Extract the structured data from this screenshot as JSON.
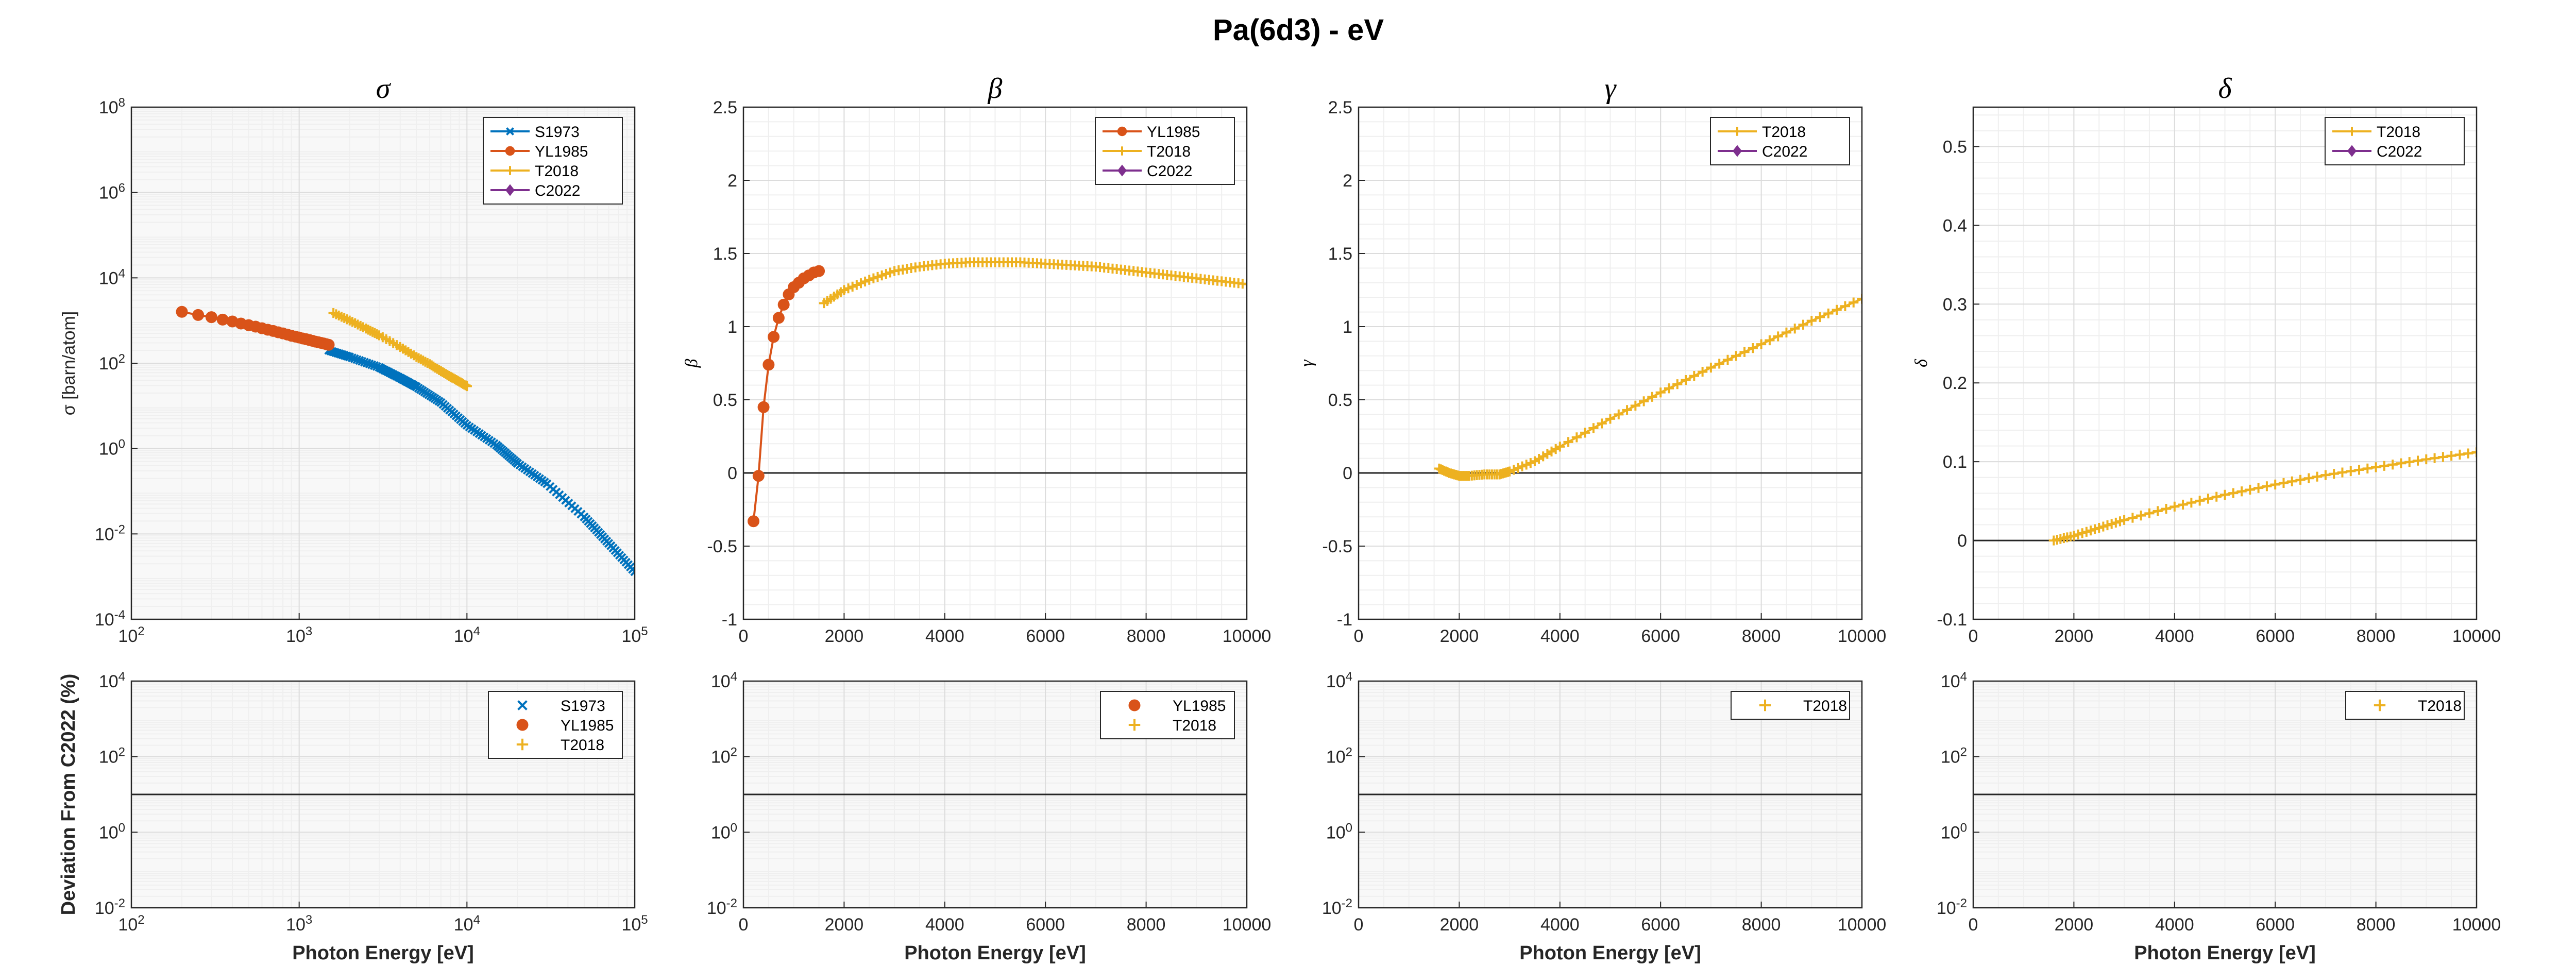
{
  "figure": {
    "title": "Pa(6d3) -  eV"
  },
  "colors": {
    "S1973": "#0072BD",
    "YL1985": "#D95319",
    "T2018": "#EDB120",
    "C2022": "#7E2F8E",
    "zero_line": "#262626",
    "axis": "#262626",
    "grid_major": "#dcdcdc",
    "grid_minor": "#efefef",
    "band": "#f2f2f2"
  },
  "chart_data": [
    {
      "id": "sigma",
      "type": "line",
      "title": "σ",
      "xlabel": "",
      "ylabel": "σ [barn/atom]",
      "xscale": "log",
      "yscale": "log",
      "xlim": [
        100,
        100000
      ],
      "ylim": [
        0.0001,
        100000000
      ],
      "xticks": [
        100,
        1000,
        10000,
        100000
      ],
      "xtick_labels": [
        {
          "b": "10",
          "e": "2"
        },
        {
          "b": "10",
          "e": "3"
        },
        {
          "b": "10",
          "e": "4"
        },
        {
          "b": "10",
          "e": "5"
        }
      ],
      "yticks": [
        0.0001,
        0.01,
        1,
        100,
        10000,
        1000000,
        100000000
      ],
      "ytick_labels": [
        {
          "b": "10",
          "e": "-4"
        },
        {
          "b": "10",
          "e": "-2"
        },
        {
          "b": "10",
          "e": "0"
        },
        {
          "b": "10",
          "e": "2"
        },
        {
          "b": "10",
          "e": "4"
        },
        {
          "b": "10",
          "e": "6"
        },
        {
          "b": "10",
          "e": "8"
        }
      ],
      "grid": "major+minor",
      "legend": "top-right",
      "legend_entries": [
        "S1973",
        "YL1985",
        "T2018",
        "C2022"
      ],
      "series": [
        {
          "name": "S1973",
          "marker": "x",
          "x": [
            1500,
            2000,
            3000,
            4000,
            5000,
            7000,
            10000,
            15000,
            20000,
            30000,
            50000,
            70000,
            100000
          ],
          "y": [
            200,
            140,
            80,
            45,
            28,
            12,
            3.5,
            1.2,
            0.45,
            0.15,
            0.025,
            0.006,
            0.0013
          ]
        },
        {
          "name": "YL1985",
          "marker": "o",
          "x": [
            200,
            250,
            300,
            350,
            400,
            450,
            500,
            550,
            600,
            650,
            700,
            750,
            800,
            850,
            900,
            950,
            1000,
            1050,
            1100,
            1150,
            1200,
            1250,
            1300,
            1350,
            1400,
            1450,
            1500
          ],
          "y": [
            1600,
            1350,
            1200,
            1050,
            950,
            850,
            780,
            720,
            660,
            610,
            570,
            530,
            500,
            470,
            440,
            420,
            400,
            380,
            365,
            350,
            335,
            320,
            310,
            300,
            290,
            280,
            270
          ]
        },
        {
          "name": "T2018",
          "marker": "+",
          "x": [
            1600,
            2000,
            2500,
            3000,
            4000,
            5000,
            6000,
            7000,
            8000,
            9000,
            10000
          ],
          "y": [
            1500,
            1000,
            650,
            450,
            240,
            140,
            95,
            65,
            48,
            37,
            29
          ]
        },
        {
          "name": "C2022",
          "marker": "d",
          "x": [],
          "y": []
        }
      ]
    },
    {
      "id": "beta",
      "type": "line",
      "title": "β",
      "xlabel": "",
      "ylabel": "β",
      "xscale": "linear",
      "yscale": "linear",
      "xlim": [
        0,
        10000
      ],
      "ylim": [
        -1,
        2.5
      ],
      "xticks": [
        0,
        2000,
        4000,
        6000,
        8000,
        10000
      ],
      "xtick_labels": [
        "0",
        "2000",
        "4000",
        "6000",
        "8000",
        "10000"
      ],
      "yticks": [
        -1,
        -0.5,
        0,
        0.5,
        1,
        1.5,
        2,
        2.5
      ],
      "ytick_labels": [
        "-1",
        "-0.5",
        "0",
        "0.5",
        "1",
        "1.5",
        "2",
        "2.5"
      ],
      "grid": "major+minor",
      "zero_line": true,
      "legend": "top-right",
      "legend_entries": [
        "YL1985",
        "T2018",
        "C2022"
      ],
      "series": [
        {
          "name": "YL1985",
          "marker": "o",
          "x": [
            200,
            300,
            400,
            500,
            600,
            700,
            800,
            900,
            1000,
            1100,
            1200,
            1300,
            1400,
            1500
          ],
          "y": [
            -0.33,
            -0.02,
            0.45,
            0.74,
            0.93,
            1.06,
            1.15,
            1.22,
            1.27,
            1.3,
            1.33,
            1.35,
            1.37,
            1.38
          ]
        },
        {
          "name": "T2018",
          "marker": "+",
          "x": [
            1600,
            2000,
            2500,
            3000,
            3500,
            4000,
            4500,
            5000,
            5500,
            6000,
            6500,
            7000,
            7500,
            8000,
            8500,
            9000,
            9500,
            10000
          ],
          "y": [
            1.16,
            1.25,
            1.32,
            1.38,
            1.41,
            1.43,
            1.44,
            1.44,
            1.44,
            1.43,
            1.42,
            1.41,
            1.39,
            1.37,
            1.35,
            1.33,
            1.31,
            1.29
          ]
        },
        {
          "name": "C2022",
          "marker": "d",
          "x": [],
          "y": []
        }
      ]
    },
    {
      "id": "gamma",
      "type": "line",
      "title": "γ",
      "xlabel": "",
      "ylabel": "γ",
      "xscale": "linear",
      "yscale": "linear",
      "xlim": [
        0,
        10000
      ],
      "ylim": [
        -1,
        2.5
      ],
      "xticks": [
        0,
        2000,
        4000,
        6000,
        8000,
        10000
      ],
      "xtick_labels": [
        "0",
        "2000",
        "4000",
        "6000",
        "8000",
        "10000"
      ],
      "yticks": [
        -1,
        -0.5,
        0,
        0.5,
        1,
        1.5,
        2,
        2.5
      ],
      "ytick_labels": [
        "-1",
        "-0.5",
        "0",
        "0.5",
        "1",
        "1.5",
        "2",
        "2.5"
      ],
      "grid": "major+minor",
      "zero_line": true,
      "legend": "top-right",
      "legend_entries": [
        "T2018",
        "C2022"
      ],
      "series": [
        {
          "name": "T2018",
          "marker": "+",
          "x": [
            1600,
            1800,
            2000,
            2200,
            2500,
            2800,
            3000,
            3500,
            4000,
            5000,
            6000,
            7000,
            8000,
            9000,
            10000
          ],
          "y": [
            0.03,
            0.0,
            -0.02,
            -0.02,
            -0.01,
            -0.01,
            0.01,
            0.08,
            0.18,
            0.37,
            0.55,
            0.72,
            0.88,
            1.04,
            1.19
          ]
        },
        {
          "name": "C2022",
          "marker": "d",
          "x": [],
          "y": []
        }
      ]
    },
    {
      "id": "delta",
      "type": "line",
      "title": "δ",
      "xlabel": "",
      "ylabel": "δ",
      "xscale": "linear",
      "yscale": "linear",
      "xlim": [
        0,
        10000
      ],
      "ylim": [
        -0.1,
        0.55
      ],
      "xticks": [
        0,
        2000,
        4000,
        6000,
        8000,
        10000
      ],
      "xtick_labels": [
        "0",
        "2000",
        "4000",
        "6000",
        "8000",
        "10000"
      ],
      "yticks": [
        -0.1,
        0,
        0.1,
        0.2,
        0.3,
        0.4,
        0.5
      ],
      "ytick_labels": [
        "-0.1",
        "0",
        "0.1",
        "0.2",
        "0.3",
        "0.4",
        "0.5"
      ],
      "grid": "major+minor",
      "zero_line": true,
      "legend": "top-right",
      "legend_entries": [
        "T2018",
        "C2022"
      ],
      "series": [
        {
          "name": "T2018",
          "marker": "+",
          "x": [
            1600,
            2000,
            2500,
            3000,
            4000,
            5000,
            6000,
            7000,
            8000,
            9000,
            10000
          ],
          "y": [
            0.0,
            0.006,
            0.016,
            0.026,
            0.043,
            0.058,
            0.071,
            0.083,
            0.093,
            0.103,
            0.112
          ]
        },
        {
          "name": "C2022",
          "marker": "d",
          "x": [],
          "y": []
        }
      ]
    },
    {
      "id": "dev-sigma",
      "type": "line",
      "title": "",
      "xlabel": "Photon Energy [eV]",
      "ylabel": "Deviation From C2022 (%)",
      "xscale": "log",
      "yscale": "log",
      "xlim": [
        100,
        100000
      ],
      "ylim": [
        0.01,
        10000
      ],
      "xticks": [
        100,
        1000,
        10000,
        100000
      ],
      "xtick_labels": [
        {
          "b": "10",
          "e": "2"
        },
        {
          "b": "10",
          "e": "3"
        },
        {
          "b": "10",
          "e": "4"
        },
        {
          "b": "10",
          "e": "5"
        }
      ],
      "yticks": [
        0.01,
        1,
        100,
        10000
      ],
      "ytick_labels": [
        {
          "b": "10",
          "e": "-2"
        },
        {
          "b": "10",
          "e": "0"
        },
        {
          "b": "10",
          "e": "2"
        },
        {
          "b": "10",
          "e": "4"
        }
      ],
      "grid": "major+minor",
      "ref_line_y": 10,
      "legend": "top-right",
      "legend_entries": [
        "S1973",
        "YL1985",
        "T2018"
      ],
      "series": []
    },
    {
      "id": "dev-beta",
      "type": "line",
      "title": "",
      "xlabel": "Photon Energy [eV]",
      "ylabel": "",
      "xscale": "linear",
      "yscale": "log",
      "xlim": [
        0,
        10000
      ],
      "ylim": [
        0.01,
        10000
      ],
      "xticks": [
        0,
        2000,
        4000,
        6000,
        8000,
        10000
      ],
      "xtick_labels": [
        "0",
        "2000",
        "4000",
        "6000",
        "8000",
        "10000"
      ],
      "yticks": [
        0.01,
        1,
        100,
        10000
      ],
      "ytick_labels": [
        {
          "b": "10",
          "e": "-2"
        },
        {
          "b": "10",
          "e": "0"
        },
        {
          "b": "10",
          "e": "2"
        },
        {
          "b": "10",
          "e": "4"
        }
      ],
      "grid": "major+minor",
      "ref_line_y": 10,
      "legend": "top-right",
      "legend_entries": [
        "YL1985",
        "T2018"
      ],
      "series": []
    },
    {
      "id": "dev-gamma",
      "type": "line",
      "title": "",
      "xlabel": "Photon Energy [eV]",
      "ylabel": "",
      "xscale": "linear",
      "yscale": "log",
      "xlim": [
        0,
        10000
      ],
      "ylim": [
        0.01,
        10000
      ],
      "xticks": [
        0,
        2000,
        4000,
        6000,
        8000,
        10000
      ],
      "xtick_labels": [
        "0",
        "2000",
        "4000",
        "6000",
        "8000",
        "10000"
      ],
      "yticks": [
        0.01,
        1,
        100,
        10000
      ],
      "ytick_labels": [
        {
          "b": "10",
          "e": "-2"
        },
        {
          "b": "10",
          "e": "0"
        },
        {
          "b": "10",
          "e": "2"
        },
        {
          "b": "10",
          "e": "4"
        }
      ],
      "grid": "major+minor",
      "ref_line_y": 10,
      "legend": "top-right",
      "legend_entries": [
        "T2018"
      ],
      "series": []
    },
    {
      "id": "dev-delta",
      "type": "line",
      "title": "",
      "xlabel": "Photon Energy [eV]",
      "ylabel": "",
      "xscale": "linear",
      "yscale": "log",
      "xlim": [
        0,
        10000
      ],
      "ylim": [
        0.01,
        10000
      ],
      "xticks": [
        0,
        2000,
        4000,
        6000,
        8000,
        10000
      ],
      "xtick_labels": [
        "0",
        "2000",
        "4000",
        "6000",
        "8000",
        "10000"
      ],
      "yticks": [
        0.01,
        1,
        100,
        10000
      ],
      "ytick_labels": [
        {
          "b": "10",
          "e": "-2"
        },
        {
          "b": "10",
          "e": "0"
        },
        {
          "b": "10",
          "e": "2"
        },
        {
          "b": "10",
          "e": "4"
        }
      ],
      "grid": "major+minor",
      "ref_line_y": 10,
      "legend": "top-right",
      "legend_entries": [
        "T2018"
      ],
      "series": []
    }
  ]
}
